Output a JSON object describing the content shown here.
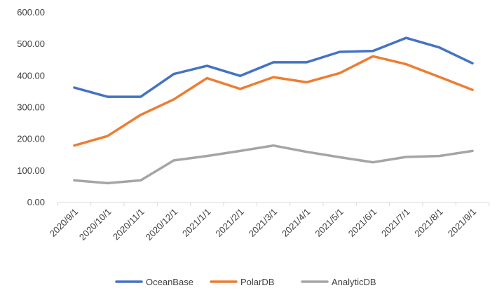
{
  "chart_data": {
    "type": "line",
    "title": "",
    "xlabel": "",
    "ylabel": "",
    "ylim": [
      0,
      600
    ],
    "y_ticks": [
      "0.00",
      "100.00",
      "200.00",
      "300.00",
      "400.00",
      "500.00",
      "600.00"
    ],
    "grid": false,
    "legend_position": "bottom",
    "categories": [
      "2020/9/1",
      "2020/10/1",
      "2020/11/1",
      "2020/12/1",
      "2021/1/1",
      "2021/2/1",
      "2021/3/1",
      "2021/4/1",
      "2021/5/1",
      "2021/6/1",
      "2021/7/1",
      "2021/8/1",
      "2021/9/1"
    ],
    "series": [
      {
        "name": "OceanBase",
        "color": "#4472c4",
        "values": [
          363,
          334,
          334,
          406,
          432,
          400,
          443,
          443,
          476,
          479,
          520,
          490,
          440
        ]
      },
      {
        "name": "PolarDB",
        "color": "#ed7d31",
        "values": [
          180,
          210,
          277,
          326,
          393,
          359,
          396,
          380,
          409,
          462,
          437,
          397,
          356
        ]
      },
      {
        "name": "AnalyticDB",
        "color": "#a5a5a5",
        "values": [
          70,
          61,
          70,
          133,
          147,
          163,
          180,
          160,
          143,
          127,
          144,
          147,
          163
        ]
      }
    ]
  }
}
